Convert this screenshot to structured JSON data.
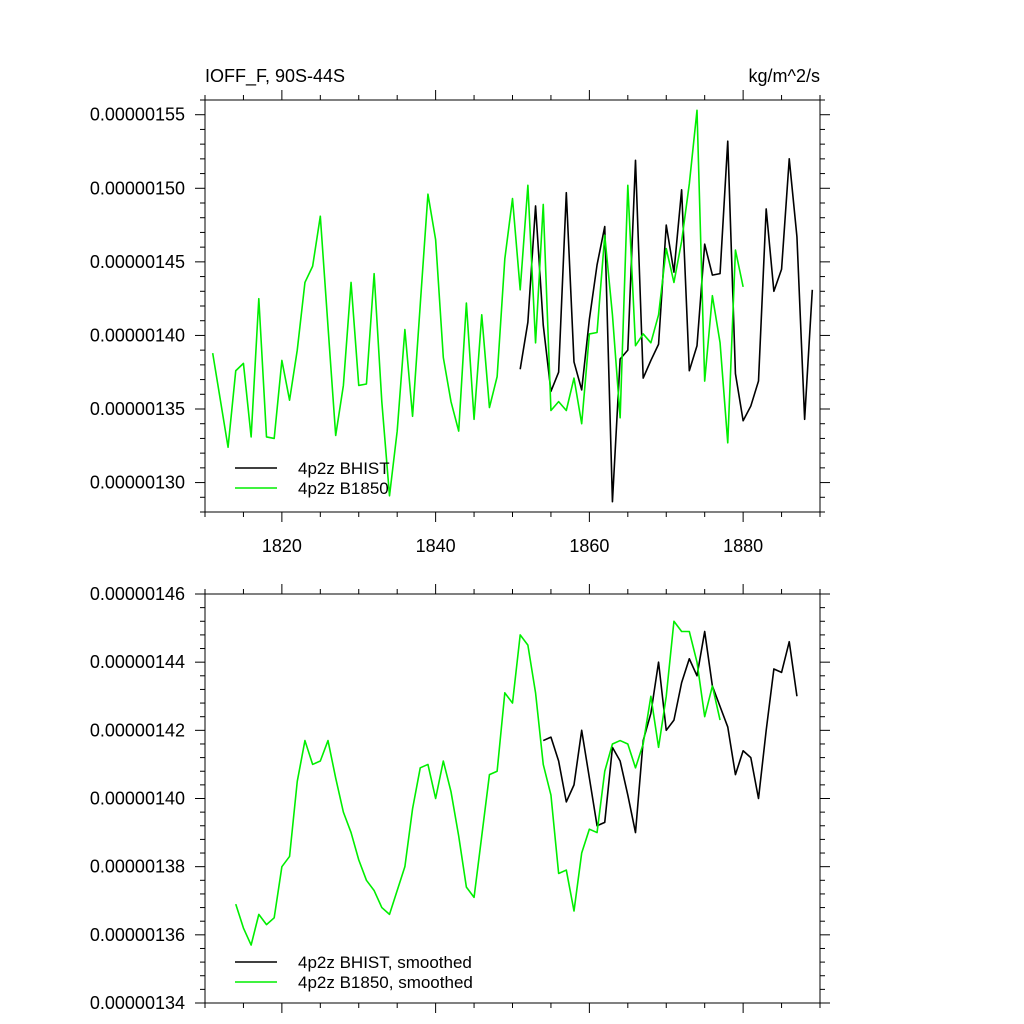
{
  "chart_data": [
    {
      "type": "line",
      "title_left": "IOFF_F, 90S-44S",
      "title_right": "kg/m^2/s",
      "xlabel": "",
      "ylabel": "",
      "xlim": [
        1810,
        1890
      ],
      "ylim": [
        1.28e-06,
        1.56e-06
      ],
      "x_ticks": [
        1820,
        1840,
        1860,
        1880
      ],
      "x_tick_labels": [
        "1820",
        "1840",
        "1860",
        "1880"
      ],
      "y_ticks": [
        1.3e-06,
        1.35e-06,
        1.4e-06,
        1.45e-06,
        1.5e-06,
        1.55e-06
      ],
      "y_tick_labels": [
        "0.00000130",
        "0.00000135",
        "0.00000140",
        "0.00000145",
        "0.00000150",
        "0.00000155"
      ],
      "grid": false,
      "legend_position": "bottom-left",
      "series": [
        {
          "name": "4p2z BHIST",
          "color": "#000000",
          "x": [
            1851,
            1852,
            1853,
            1854,
            1855,
            1856,
            1857,
            1858,
            1859,
            1860,
            1861,
            1862,
            1863,
            1864,
            1865,
            1866,
            1867,
            1868,
            1869,
            1870,
            1871,
            1872,
            1873,
            1874,
            1875,
            1876,
            1877,
            1878,
            1879,
            1880,
            1881,
            1882,
            1883,
            1884,
            1885,
            1886,
            1887,
            1888,
            1889
          ],
          "values": [
            1.377e-06,
            1.409e-06,
            1.488e-06,
            1.407e-06,
            1.362e-06,
            1.375e-06,
            1.497e-06,
            1.382e-06,
            1.363e-06,
            1.411e-06,
            1.448e-06,
            1.474e-06,
            1.287e-06,
            1.384e-06,
            1.39e-06,
            1.519e-06,
            1.371e-06,
            1.383e-06,
            1.394e-06,
            1.475e-06,
            1.443e-06,
            1.499e-06,
            1.376e-06,
            1.393e-06,
            1.462e-06,
            1.441e-06,
            1.442e-06,
            1.532e-06,
            1.374e-06,
            1.342e-06,
            1.352e-06,
            1.369e-06,
            1.486e-06,
            1.43e-06,
            1.445e-06,
            1.52e-06,
            1.467e-06,
            1.343e-06,
            1.431e-06
          ]
        },
        {
          "name": "4p2z B1850",
          "color": "#00ee00",
          "x": [
            1811,
            1812,
            1813,
            1814,
            1815,
            1816,
            1817,
            1818,
            1819,
            1820,
            1821,
            1822,
            1823,
            1824,
            1825,
            1826,
            1827,
            1828,
            1829,
            1830,
            1831,
            1832,
            1833,
            1834,
            1835,
            1836,
            1837,
            1838,
            1839,
            1840,
            1841,
            1842,
            1843,
            1844,
            1845,
            1846,
            1847,
            1848,
            1849,
            1850,
            1851,
            1852,
            1853,
            1854,
            1855,
            1856,
            1857,
            1858,
            1859,
            1860,
            1861,
            1862,
            1863,
            1864,
            1865,
            1866,
            1867,
            1868,
            1869,
            1870,
            1871,
            1872,
            1873,
            1874,
            1875,
            1876,
            1877,
            1878,
            1879,
            1880
          ],
          "values": [
            1.388e-06,
            1.356e-06,
            1.324e-06,
            1.376e-06,
            1.381e-06,
            1.331e-06,
            1.425e-06,
            1.331e-06,
            1.33e-06,
            1.383e-06,
            1.356e-06,
            1.39e-06,
            1.436e-06,
            1.447e-06,
            1.481e-06,
            1.406e-06,
            1.332e-06,
            1.366e-06,
            1.436e-06,
            1.366e-06,
            1.367e-06,
            1.442e-06,
            1.355e-06,
            1.291e-06,
            1.335e-06,
            1.404e-06,
            1.345e-06,
            1.421e-06,
            1.496e-06,
            1.465e-06,
            1.385e-06,
            1.355e-06,
            1.335e-06,
            1.422e-06,
            1.343e-06,
            1.414e-06,
            1.351e-06,
            1.372e-06,
            1.452e-06,
            1.493e-06,
            1.431e-06,
            1.502e-06,
            1.395e-06,
            1.489e-06,
            1.349e-06,
            1.355e-06,
            1.349e-06,
            1.371e-06,
            1.34e-06,
            1.401e-06,
            1.402e-06,
            1.468e-06,
            1.414e-06,
            1.344e-06,
            1.502e-06,
            1.393e-06,
            1.401e-06,
            1.395e-06,
            1.414e-06,
            1.459e-06,
            1.436e-06,
            1.464e-06,
            1.503e-06,
            1.553e-06,
            1.369e-06,
            1.427e-06,
            1.395e-06,
            1.327e-06,
            1.458e-06,
            1.433e-06
          ]
        }
      ]
    },
    {
      "type": "line",
      "title": "",
      "xlabel": "",
      "ylabel": "",
      "xlim": [
        1810,
        1890
      ],
      "ylim": [
        1.34e-06,
        1.46e-06
      ],
      "x_ticks": [
        1820,
        1840,
        1860,
        1880
      ],
      "y_ticks": [
        1.34e-06,
        1.36e-06,
        1.38e-06,
        1.4e-06,
        1.42e-06,
        1.44e-06,
        1.46e-06
      ],
      "y_tick_labels": [
        "0.00000134",
        "0.00000136",
        "0.00000138",
        "0.00000140",
        "0.00000142",
        "0.00000144",
        "0.00000146"
      ],
      "grid": false,
      "legend_position": "bottom-left",
      "series": [
        {
          "name": "4p2z BHIST, smoothed",
          "color": "#000000",
          "x": [
            1854,
            1855,
            1856,
            1857,
            1858,
            1859,
            1860,
            1861,
            1862,
            1863,
            1864,
            1865,
            1866,
            1867,
            1868,
            1869,
            1870,
            1871,
            1872,
            1873,
            1874,
            1875,
            1876,
            1877,
            1878,
            1879,
            1880,
            1881,
            1882,
            1883,
            1884,
            1885,
            1886,
            1887
          ],
          "values": [
            1.417e-06,
            1.418e-06,
            1.411e-06,
            1.399e-06,
            1.404e-06,
            1.42e-06,
            1.406e-06,
            1.392e-06,
            1.393e-06,
            1.415e-06,
            1.411e-06,
            1.401e-06,
            1.39e-06,
            1.417e-06,
            1.425e-06,
            1.44e-06,
            1.42e-06,
            1.423e-06,
            1.434e-06,
            1.441e-06,
            1.436e-06,
            1.449e-06,
            1.433e-06,
            1.427e-06,
            1.421e-06,
            1.407e-06,
            1.414e-06,
            1.412e-06,
            1.4e-06,
            1.42e-06,
            1.438e-06,
            1.437e-06,
            1.446e-06,
            1.43e-06
          ]
        },
        {
          "name": "4p2z B1850, smoothed",
          "color": "#00ee00",
          "x": [
            1814,
            1815,
            1816,
            1817,
            1818,
            1819,
            1820,
            1821,
            1822,
            1823,
            1824,
            1825,
            1826,
            1827,
            1828,
            1829,
            1830,
            1831,
            1832,
            1833,
            1834,
            1835,
            1836,
            1837,
            1838,
            1839,
            1840,
            1841,
            1842,
            1843,
            1844,
            1845,
            1846,
            1847,
            1848,
            1849,
            1850,
            1851,
            1852,
            1853,
            1854,
            1855,
            1856,
            1857,
            1858,
            1859,
            1860,
            1861,
            1862,
            1863,
            1864,
            1865,
            1866,
            1867,
            1868,
            1869,
            1870,
            1871,
            1872,
            1873,
            1874,
            1875,
            1876,
            1877
          ],
          "values": [
            1.369e-06,
            1.362e-06,
            1.357e-06,
            1.366e-06,
            1.363e-06,
            1.365e-06,
            1.38e-06,
            1.383e-06,
            1.405e-06,
            1.417e-06,
            1.41e-06,
            1.411e-06,
            1.417e-06,
            1.406e-06,
            1.396e-06,
            1.39e-06,
            1.382e-06,
            1.376e-06,
            1.373e-06,
            1.368e-06,
            1.366e-06,
            1.373e-06,
            1.38e-06,
            1.397e-06,
            1.409e-06,
            1.41e-06,
            1.4e-06,
            1.411e-06,
            1.402e-06,
            1.389e-06,
            1.374e-06,
            1.371e-06,
            1.389e-06,
            1.407e-06,
            1.408e-06,
            1.431e-06,
            1.428e-06,
            1.448e-06,
            1.445e-06,
            1.431e-06,
            1.41e-06,
            1.401e-06,
            1.378e-06,
            1.379e-06,
            1.367e-06,
            1.384e-06,
            1.391e-06,
            1.39e-06,
            1.408e-06,
            1.416e-06,
            1.417e-06,
            1.416e-06,
            1.409e-06,
            1.416e-06,
            1.43e-06,
            1.415e-06,
            1.43e-06,
            1.452e-06,
            1.449e-06,
            1.449e-06,
            1.44e-06,
            1.424e-06,
            1.433e-06,
            1.423e-06
          ]
        }
      ]
    }
  ]
}
